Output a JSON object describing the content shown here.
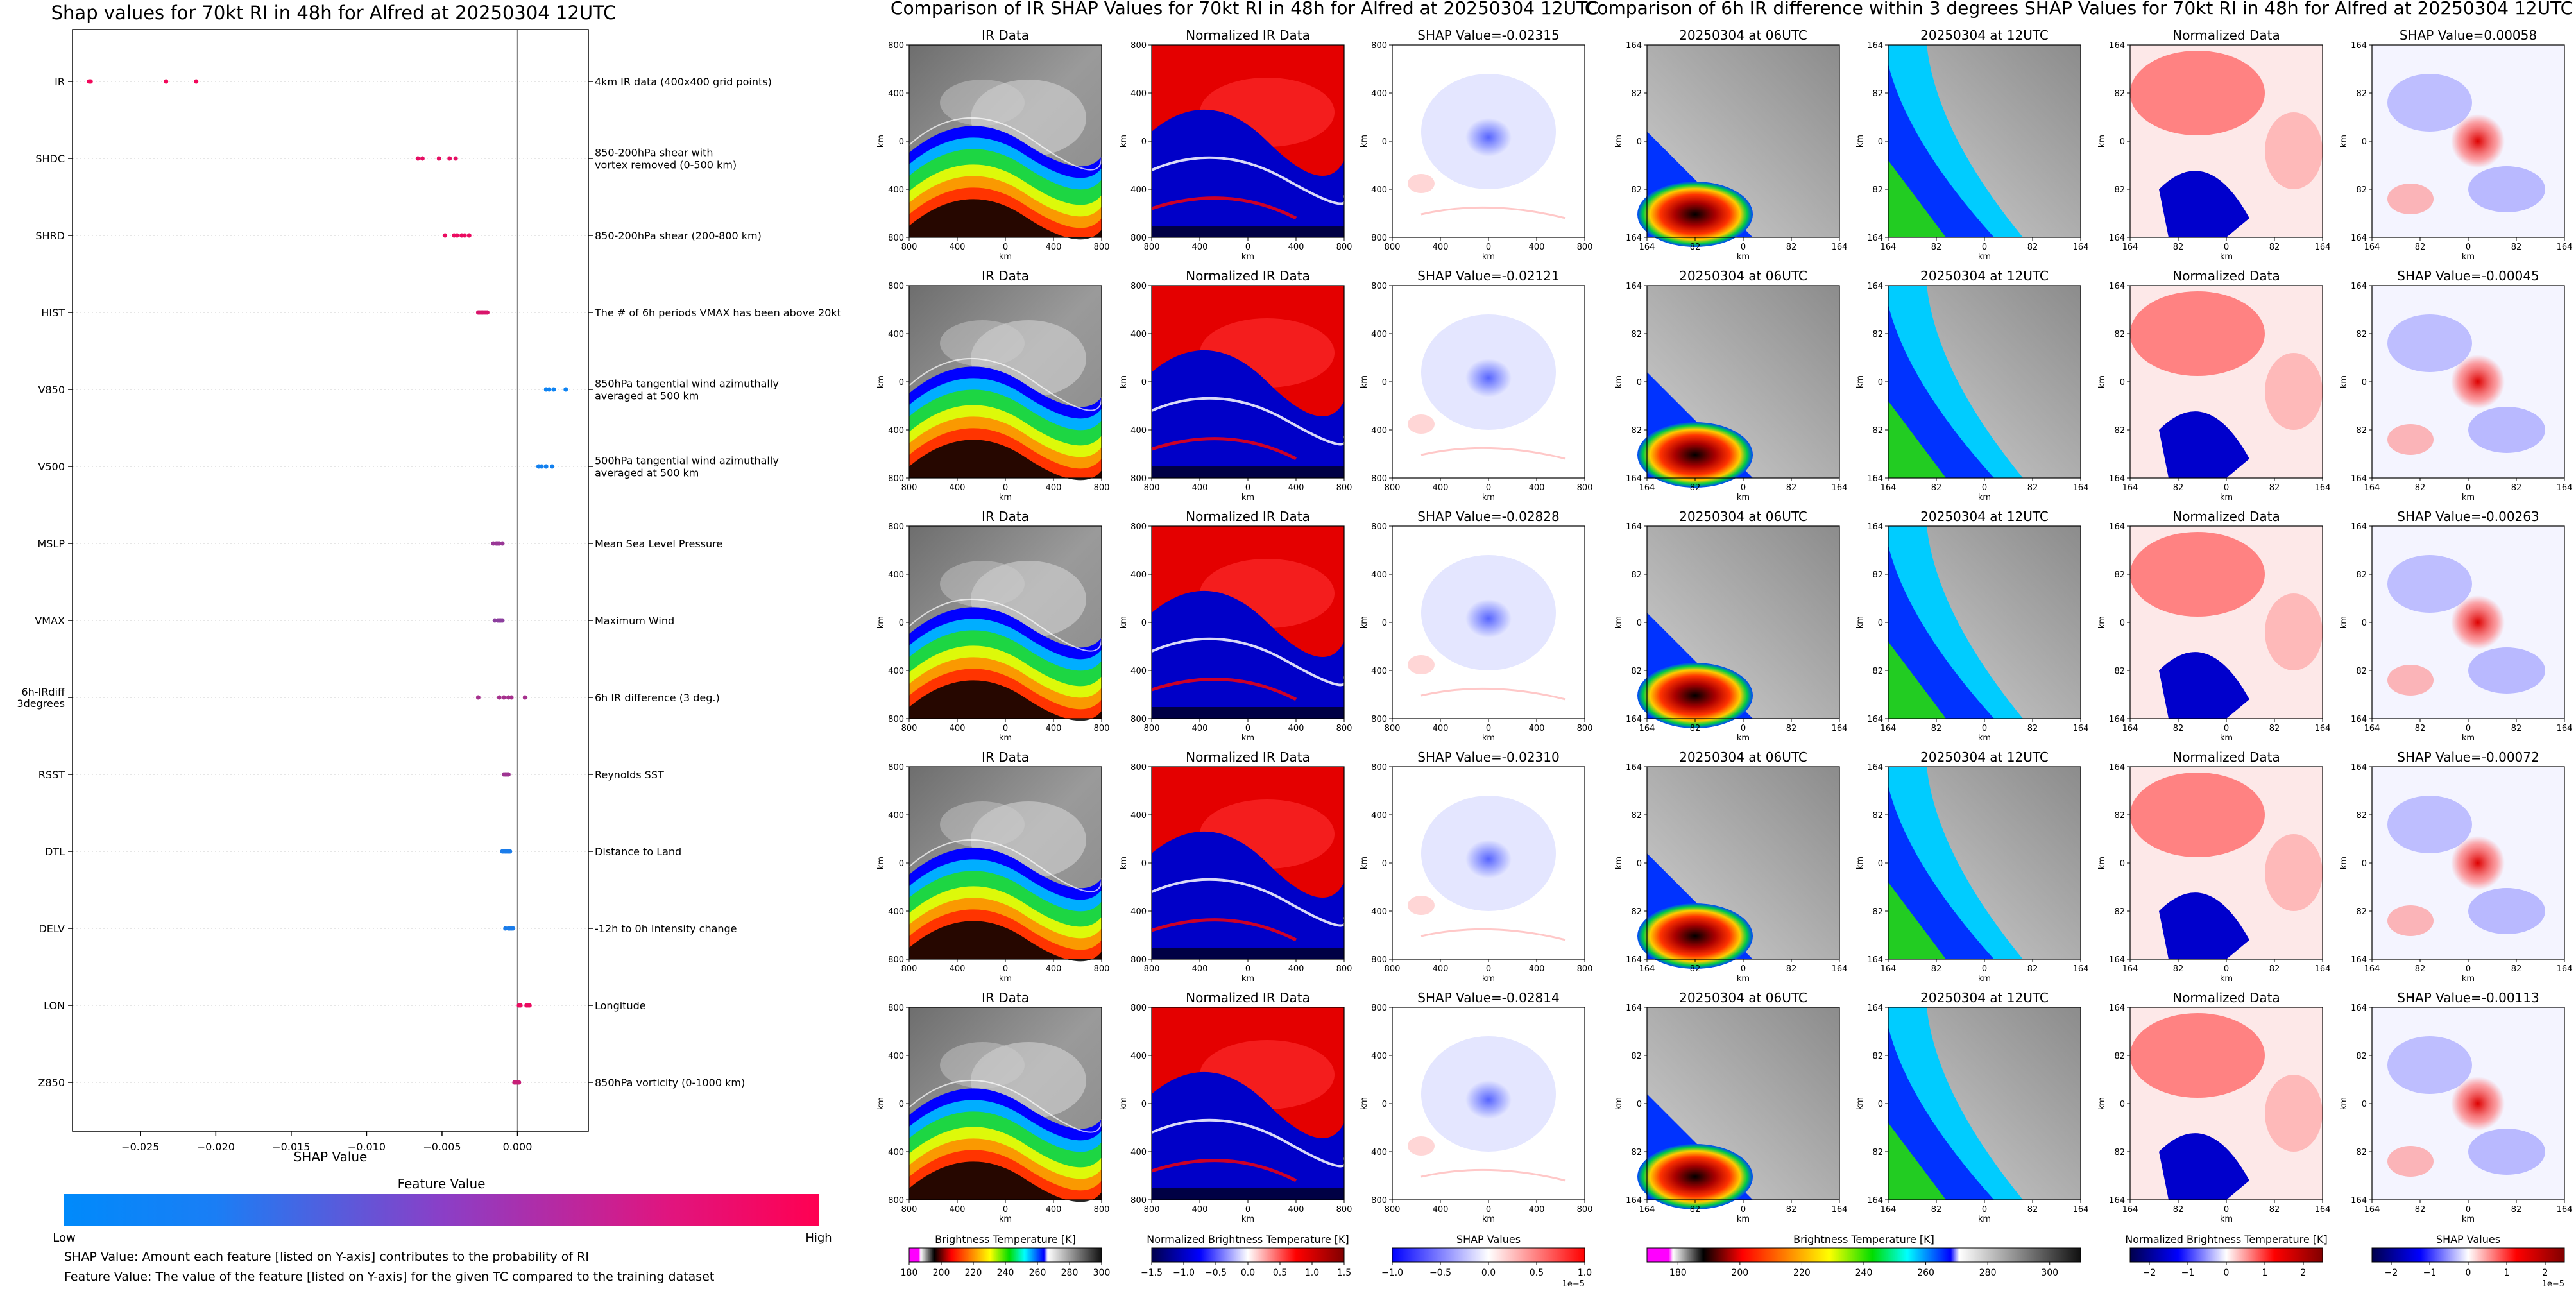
{
  "chart_data": [
    {
      "type": "scatter",
      "title": "Shap values for 70kt RI in 48h for Alfred at 20250304 12UTC",
      "xlabel": "SHAP Value",
      "xlim": [
        -0.0295,
        0.0047
      ],
      "xticks": [
        -0.025,
        -0.02,
        -0.015,
        -0.01,
        -0.005,
        0.0
      ],
      "xtick_labels": [
        "−0.025",
        "−0.020",
        "−0.015",
        "−0.010",
        "−0.005",
        "0.000"
      ],
      "features": [
        {
          "name": "IR",
          "description": "4km IR data (400x400 grid points)",
          "values": [
            -0.0284,
            -0.0283,
            -0.0233,
            -0.0213
          ],
          "color_level": 0.95
        },
        {
          "name": "SHDC",
          "description": "850-200hPa shear with\nvortex removed (0-500 km)",
          "values": [
            -0.0066,
            -0.0063,
            -0.0052,
            -0.0045,
            -0.0041
          ],
          "color_level": 0.9
        },
        {
          "name": "SHRD",
          "description": "850-200hPa shear (200-800 km)",
          "values": [
            -0.0048,
            -0.0042,
            -0.004,
            -0.0037,
            -0.0035,
            -0.0032
          ],
          "color_level": 0.92
        },
        {
          "name": "HIST",
          "description": "The # of 6h periods VMAX has been above 20kt",
          "values": [
            -0.0026,
            -0.0025,
            -0.0024,
            -0.0023,
            -0.0022,
            -0.0021,
            -0.002
          ],
          "color_level": 0.85
        },
        {
          "name": "V850",
          "description": "850hPa tangential wind azimuthally\naveraged at 500 km",
          "values": [
            0.0019,
            0.0021,
            0.0024,
            0.0032
          ],
          "color_level": 0.05
        },
        {
          "name": "V500",
          "description": "500hPa tangential wind azimuthally\naveraged at 500 km",
          "values": [
            0.0014,
            0.0016,
            0.0019,
            0.0023
          ],
          "color_level": 0.07
        },
        {
          "name": "MSLP",
          "description": "Mean Sea Level Pressure",
          "values": [
            -0.0016,
            -0.0014,
            -0.0013,
            -0.0012,
            -0.001
          ],
          "color_level": 0.6
        },
        {
          "name": "VMAX",
          "description": "Maximum Wind",
          "values": [
            -0.0015,
            -0.0013,
            -0.0012,
            -0.0011,
            -0.001
          ],
          "color_level": 0.55
        },
        {
          "name": "6h-IRdiff\n3degrees",
          "description": "6h IR difference (3 deg.)",
          "values": [
            -0.0026,
            -0.0012,
            -0.0009,
            -0.0006,
            -0.0004,
            0.0005
          ],
          "color_level": 0.65
        },
        {
          "name": "RSST",
          "description": "Reynolds SST",
          "values": [
            -0.0009,
            -0.0008,
            -0.0007,
            -0.0006
          ],
          "color_level": 0.62
        },
        {
          "name": "DTL",
          "description": "Distance to Land",
          "values": [
            -0.001,
            -0.0009,
            -0.0008,
            -0.0007,
            -0.0006,
            -0.0005
          ],
          "color_level": 0.1
        },
        {
          "name": "DELV",
          "description": "-12h to 0h Intensity change",
          "values": [
            -0.0008,
            -0.0006,
            -0.0005,
            -0.0004,
            -0.0003
          ],
          "color_level": 0.1
        },
        {
          "name": "LON",
          "description": "Longitude",
          "values": [
            0.0001,
            0.0002,
            0.0006,
            0.0007,
            0.0008
          ],
          "color_level": 0.92
        },
        {
          "name": "Z850",
          "description": "850hPa vorticity (0-1000 km)",
          "values": [
            -0.0002,
            -0.0001,
            0.0,
            0.0001
          ],
          "color_level": 0.78
        }
      ],
      "colorbar": {
        "label": "Feature Value",
        "low": "Low",
        "high": "High",
        "low_color": "#008afb",
        "high_color": "#ff0052"
      },
      "notes": [
        "SHAP Value: Amount each feature [listed on Y-axis] contributes to the probability of RI",
        "Feature Value: The value of the feature [listed on Y-axis] for the given TC compared to the training dataset"
      ]
    },
    {
      "type": "heatmap",
      "title": "Comparison of IR SHAP Values for 70kt RI in 48h for Alfred at 20250304 12UTC",
      "panel_titles": [
        "IR Data",
        "Normalized IR Data",
        "SHAP Value=-0.02315",
        "SHAP Value=-0.02121",
        "SHAP Value=-0.02828",
        "SHAP Value=-0.02310",
        "SHAP Value=-0.02814"
      ],
      "axis_label": "km",
      "x_ticks": [
        "800",
        "400",
        "0",
        "400",
        "800"
      ],
      "y_ticks": [
        "800",
        "400",
        "0",
        "400",
        "800"
      ],
      "colorbars": [
        {
          "label": "Brightness Temperature [K]",
          "ticks": [
            "180",
            "200",
            "220",
            "240",
            "260",
            "280",
            "300"
          ]
        },
        {
          "label": "Normalized Brightness Temperature [K]",
          "ticks": [
            "−1.5",
            "−1.0",
            "−0.5",
            "0.0",
            "0.5",
            "1.0",
            "1.5"
          ]
        },
        {
          "label": "SHAP Values",
          "ticks": [
            "−1.0",
            "−0.5",
            "0.0",
            "0.5",
            "1.0"
          ],
          "offset": "1e−5"
        }
      ]
    },
    {
      "type": "heatmap",
      "title": "Comparison of 6h IR difference within 3 degrees SHAP Values for 70kt RI in 48h for Alfred at 20250304 12UTC",
      "panel_titles": [
        "20250304 at 06UTC",
        "20250304 at 12UTC",
        "Normalized Data",
        "SHAP Value=0.00058",
        "SHAP Value=-0.00045",
        "SHAP Value=-0.00263",
        "SHAP Value=-0.00072",
        "SHAP Value=-0.00113"
      ],
      "axis_label": "km",
      "x_ticks": [
        "164",
        "82",
        "0",
        "82",
        "164"
      ],
      "y_ticks": [
        "164",
        "82",
        "0",
        "82",
        "164"
      ],
      "colorbars": [
        {
          "label": "Brightness Temperature [K]",
          "ticks": [
            "180",
            "200",
            "220",
            "240",
            "260",
            "280",
            "300"
          ]
        },
        {
          "label": "Normalized Brightness Temperature [K]",
          "ticks": [
            "−2",
            "−1",
            "0",
            "1",
            "2"
          ]
        },
        {
          "label": "SHAP Values",
          "ticks": [
            "−2",
            "−1",
            "0",
            "1",
            "2"
          ],
          "offset": "1e−5"
        }
      ]
    }
  ]
}
